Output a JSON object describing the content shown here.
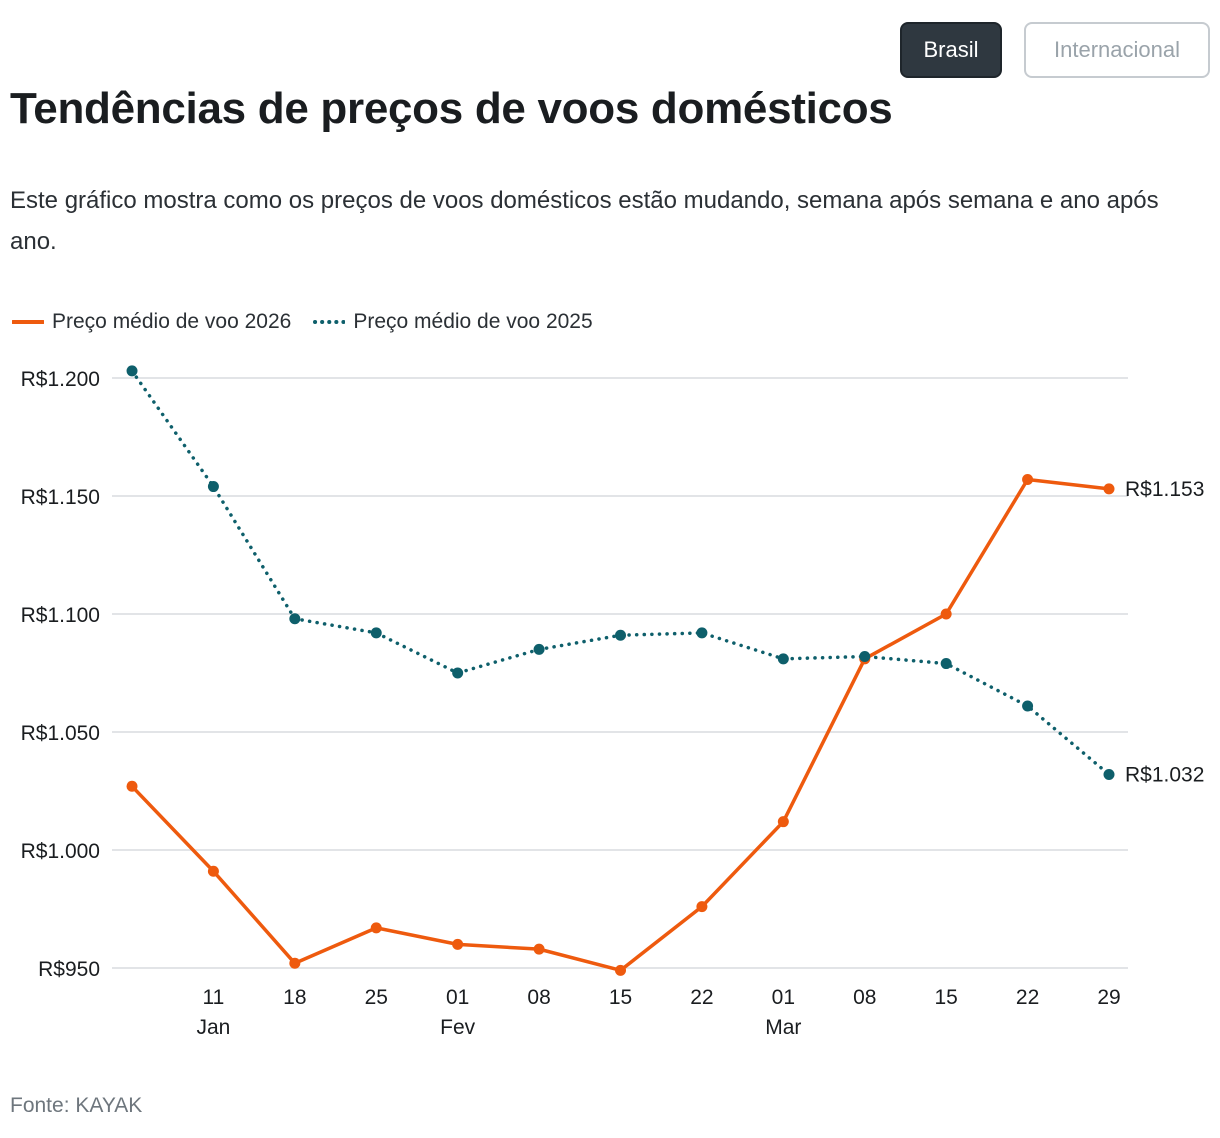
{
  "toggle": {
    "brasil": "Brasil",
    "internacional": "Internacional"
  },
  "title": "Tendências de preços de voos domésticos",
  "subtitle": "Este gráfico mostra como os preços de voos domésticos estão mudando, semana após semana e ano após ano.",
  "source": "Fonte: KAYAK",
  "colors": {
    "series_2026": "#ee5a0e",
    "series_2025": "#0e5f6b",
    "grid": "#d9dcdf",
    "active_toggle": "#2f3840"
  },
  "chart_data": {
    "type": "line",
    "title": "Tendências de preços de voos domésticos",
    "xlabel": "",
    "ylabel": "",
    "ylim": [
      950,
      1200
    ],
    "y_ticks": [
      1200,
      1150,
      1100,
      1050,
      1000,
      950
    ],
    "y_tick_labels": [
      "R$1.200",
      "R$1.150",
      "R$1.100",
      "R$1.050",
      "R$1.000",
      "R$950"
    ],
    "x_tick_labels": [
      "11",
      "18",
      "25",
      "01",
      "08",
      "15",
      "22",
      "01",
      "08",
      "15",
      "22",
      "29"
    ],
    "x_tick_index": [
      1,
      2,
      3,
      4,
      5,
      6,
      7,
      8,
      9,
      10,
      11,
      12
    ],
    "month_labels": [
      {
        "label": "Jan",
        "index": 1
      },
      {
        "label": "Fev",
        "index": 4
      },
      {
        "label": "Mar",
        "index": 8
      }
    ],
    "x": [
      0,
      1,
      2,
      3,
      4,
      5,
      6,
      7,
      8,
      9,
      10,
      11,
      12
    ],
    "series": [
      {
        "name": "Preço médio de voo 2026",
        "style": "solid",
        "values": [
          1027,
          991,
          952,
          967,
          960,
          958,
          949,
          976,
          1012,
          1081,
          1100,
          1157,
          1153
        ],
        "end_label": "R$1.153"
      },
      {
        "name": "Preço médio de voo 2025",
        "style": "dotted",
        "values": [
          1203,
          1154,
          1098,
          1092,
          1075,
          1085,
          1091,
          1092,
          1081,
          1082,
          1079,
          1061,
          1032
        ],
        "end_label": "R$1.032"
      }
    ],
    "grid": true,
    "legend_position": "top-left"
  }
}
